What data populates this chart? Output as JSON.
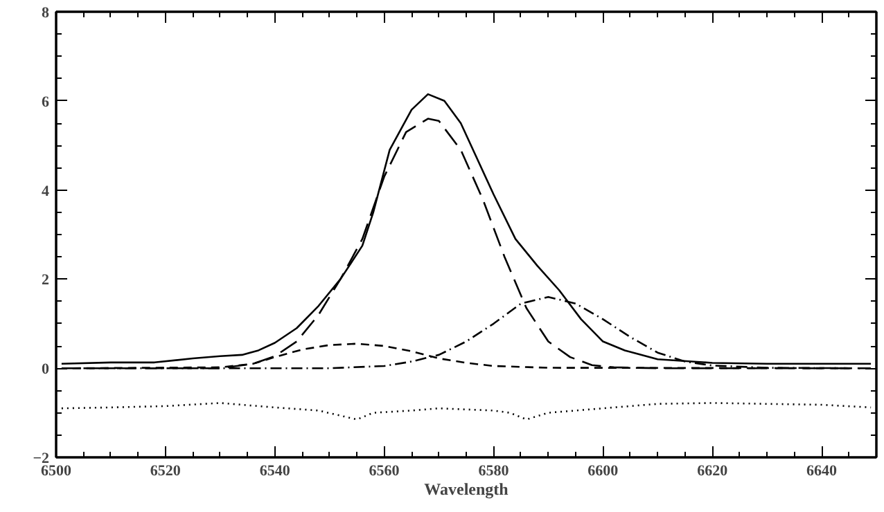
{
  "chart_data": {
    "type": "line",
    "xlabel": "Wavelength",
    "xlim": [
      6500,
      6650
    ],
    "ylim": [
      -2,
      8
    ],
    "xticks": [
      6500,
      6520,
      6540,
      6560,
      6580,
      6600,
      6620,
      6640
    ],
    "yticks": [
      -2,
      0,
      2,
      4,
      6,
      8
    ],
    "series": [
      {
        "color": "#000000",
        "line_style": "solid",
        "x": [
          6501,
          6510,
          6518,
          6525,
          6530,
          6534,
          6537,
          6540,
          6544,
          6548,
          6552,
          6556,
          6558,
          6561,
          6565,
          6568,
          6571,
          6574,
          6577,
          6580,
          6584,
          6588,
          6592,
          6596,
          6600,
          6604,
          6610,
          6620,
          6630,
          6649
        ],
        "values": [
          0.1,
          0.13,
          0.13,
          0.22,
          0.27,
          0.3,
          0.4,
          0.57,
          0.9,
          1.4,
          2.0,
          2.75,
          3.5,
          4.9,
          5.8,
          6.15,
          6.0,
          5.5,
          4.7,
          3.9,
          2.9,
          2.3,
          1.75,
          1.1,
          0.6,
          0.4,
          0.2,
          0.12,
          0.1,
          0.1
        ]
      },
      {
        "color": "#000000",
        "line_style": "longdash",
        "x": [
          6501,
          6530,
          6536,
          6540,
          6544,
          6548,
          6552,
          6556,
          6560,
          6564,
          6568,
          6570,
          6574,
          6578,
          6582,
          6586,
          6590,
          6594,
          6598,
          6602,
          6610,
          6649
        ],
        "values": [
          0,
          0,
          0.1,
          0.27,
          0.6,
          1.2,
          2.0,
          2.9,
          4.3,
          5.3,
          5.6,
          5.55,
          4.9,
          3.8,
          2.5,
          1.35,
          0.6,
          0.25,
          0.07,
          0.02,
          0,
          0
        ]
      },
      {
        "color": "#000000",
        "line_style": "dashed",
        "x": [
          6503,
          6530,
          6536,
          6540,
          6545,
          6550,
          6555,
          6560,
          6565,
          6570,
          6575,
          6580,
          6590,
          6647
        ],
        "values": [
          0,
          0.02,
          0.1,
          0.25,
          0.42,
          0.52,
          0.55,
          0.5,
          0.38,
          0.22,
          0.12,
          0.05,
          0.01,
          0
        ]
      },
      {
        "color": "#000000",
        "line_style": "dashdot",
        "x": [
          6505,
          6550,
          6560,
          6565,
          6570,
          6575,
          6580,
          6585,
          6590,
          6595,
          6600,
          6605,
          6610,
          6615,
          6620,
          6630,
          6645
        ],
        "values": [
          0,
          0,
          0.05,
          0.15,
          0.3,
          0.6,
          1.0,
          1.45,
          1.6,
          1.45,
          1.1,
          0.7,
          0.35,
          0.15,
          0.06,
          0.01,
          0
        ]
      },
      {
        "color": "#000000",
        "line_style": "dotted",
        "x": [
          6501,
          6510,
          6520,
          6530,
          6540,
          6548,
          6555,
          6558,
          6565,
          6570,
          6580,
          6583,
          6586,
          6590,
          6600,
          6610,
          6620,
          6630,
          6640,
          6649
        ],
        "values": [
          -0.9,
          -0.88,
          -0.85,
          -0.78,
          -0.88,
          -0.95,
          -1.15,
          -1.0,
          -0.95,
          -0.9,
          -0.95,
          -1.0,
          -1.15,
          -1.0,
          -0.9,
          -0.8,
          -0.78,
          -0.8,
          -0.82,
          -0.88
        ]
      }
    ]
  }
}
